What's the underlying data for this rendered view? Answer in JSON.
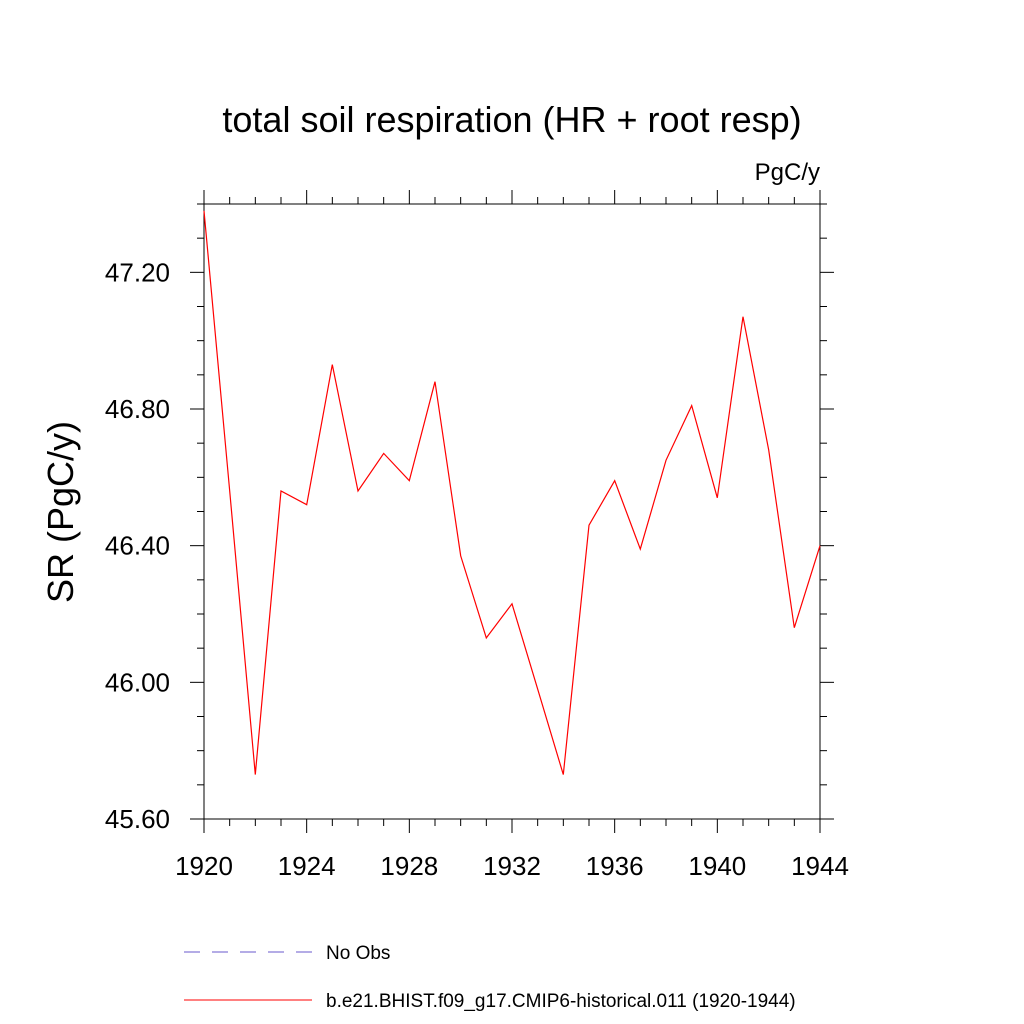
{
  "chart_data": {
    "type": "line",
    "title": "total soil respiration (HR + root resp)",
    "units_label": "PgC/y",
    "ylabel": "SR  (PgC/y)",
    "xlabel": "",
    "xlim": [
      1920,
      1944
    ],
    "ylim": [
      45.6,
      47.4
    ],
    "x_ticks": [
      "1920",
      "1924",
      "1928",
      "1932",
      "1936",
      "1940",
      "1944"
    ],
    "y_ticks": [
      "45.60",
      "46.00",
      "46.40",
      "46.80",
      "47.20"
    ],
    "grid": false,
    "legend_position": "bottom",
    "series": [
      {
        "name": "b.e21.BHIST.f09_g17.CMIP6-historical.011 (1920-1944)",
        "color": "#ff0000",
        "style": "solid",
        "x": [
          1920,
          1921,
          1922,
          1923,
          1924,
          1925,
          1926,
          1927,
          1928,
          1929,
          1930,
          1931,
          1932,
          1933,
          1934,
          1935,
          1936,
          1937,
          1938,
          1939,
          1940,
          1941,
          1942,
          1943,
          1944
        ],
        "y": [
          47.38,
          46.56,
          45.73,
          46.56,
          46.52,
          46.93,
          46.56,
          46.67,
          46.59,
          46.88,
          46.37,
          46.13,
          46.23,
          45.98,
          45.73,
          46.46,
          46.59,
          46.39,
          46.65,
          46.81,
          46.54,
          47.07,
          46.68,
          46.16,
          46.4
        ]
      }
    ],
    "legend": [
      {
        "label": "No Obs",
        "color": "#6a5acd",
        "style": "dashed"
      },
      {
        "label": "b.e21.BHIST.f09_g17.CMIP6-historical.011 (1920-1944)",
        "color": "#ff0000",
        "style": "solid"
      }
    ]
  }
}
